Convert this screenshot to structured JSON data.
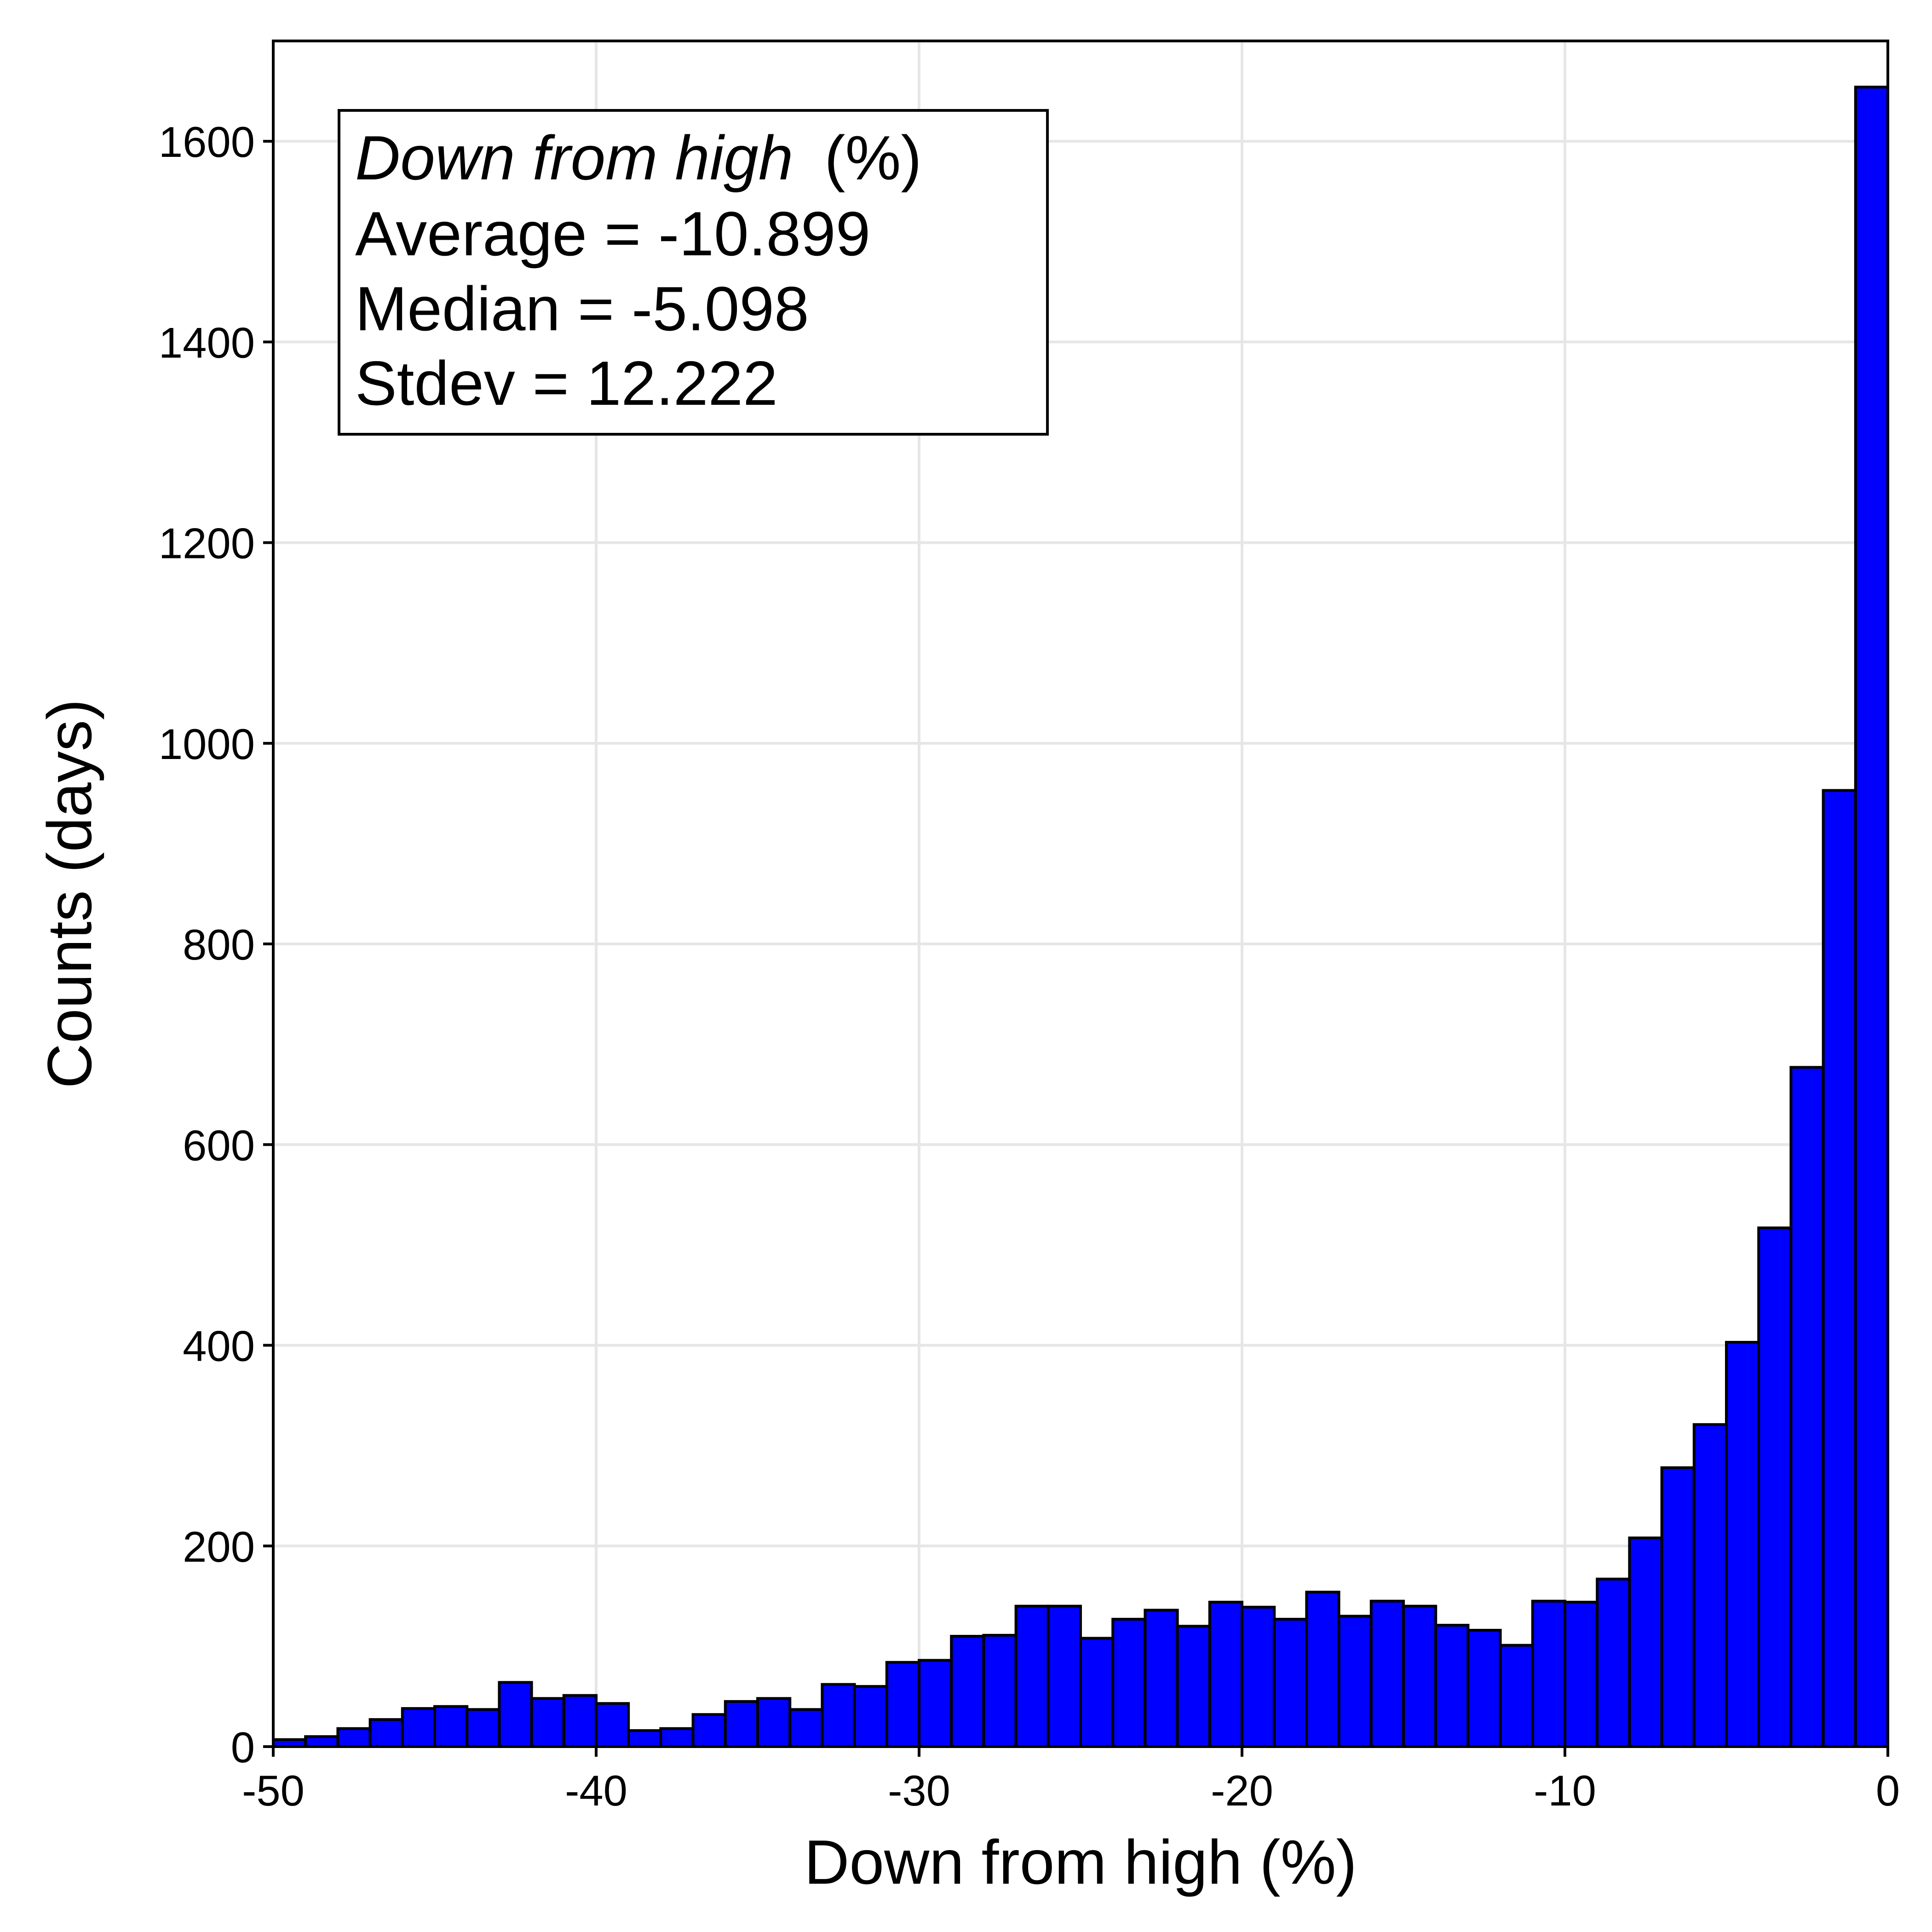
{
  "chart_data": {
    "type": "bar",
    "xlabel": "Down from high (%)",
    "ylabel": "Counts (days)",
    "xlim": [
      -50,
      0
    ],
    "ylim": [
      0,
      1700
    ],
    "grid": true,
    "xticks": [
      -50,
      -40,
      -30,
      -20,
      -10,
      0
    ],
    "xtick_labels": [
      "-50",
      "-40",
      "-30",
      "-20",
      "-10",
      "0"
    ],
    "yticks": [
      0,
      200,
      400,
      600,
      800,
      1000,
      1200,
      1400,
      1600
    ],
    "ytick_labels": [
      "0",
      "200",
      "400",
      "600",
      "800",
      "1000",
      "1200",
      "1400",
      "1600"
    ],
    "bar_color": "#0000ff",
    "bin_edges": [
      -50,
      -49,
      -48,
      -47,
      -46,
      -45,
      -44,
      -43,
      -42,
      -41,
      -40,
      -39,
      -38,
      -37,
      -36,
      -35,
      -34,
      -33,
      -32,
      -31,
      -30,
      -29,
      -28,
      -27,
      -26,
      -25,
      -24,
      -23,
      -22,
      -21,
      -20,
      -19,
      -18,
      -17,
      -16,
      -15,
      -14,
      -13,
      -12,
      -11,
      -10,
      -9,
      -8,
      -7,
      -6,
      -5,
      -4,
      -3,
      -2,
      -1,
      0
    ],
    "values": [
      7,
      10,
      18,
      27,
      38,
      40,
      37,
      64,
      48,
      51,
      43,
      16,
      18,
      32,
      45,
      48,
      37,
      62,
      60,
      84,
      86,
      110,
      111,
      140,
      140,
      108,
      127,
      136,
      120,
      144,
      139,
      127,
      154,
      130,
      145,
      140,
      121,
      116,
      101,
      145,
      144,
      167,
      208,
      278,
      321,
      403,
      517,
      677,
      953,
      1654
    ],
    "annotation": {
      "title_italic": "Down from high",
      "title_rest": "(%)",
      "lines": [
        "Average = -10.899",
        "Median = -5.098",
        "Stdev = 12.222"
      ]
    }
  }
}
